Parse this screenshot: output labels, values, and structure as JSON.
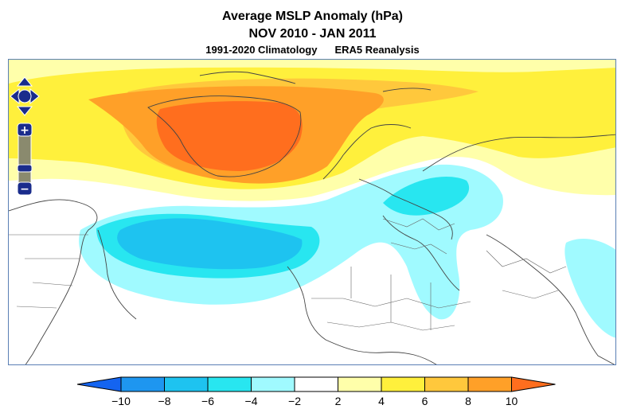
{
  "title": {
    "line1": "Average MSLP Anomaly (hPa)",
    "line2": "NOV 2010 - JAN 2011",
    "climatology": "1991-2020 Climatology",
    "source": "ERA5 Reanalysis"
  },
  "map": {
    "region": "North Atlantic and Europe",
    "controls": {
      "pan_up": "pan-up",
      "pan_down": "pan-down",
      "pan_left": "pan-left",
      "pan_right": "pan-right",
      "zoom_in": "+",
      "zoom_out": "−"
    }
  },
  "colorbar": {
    "labels": [
      "−10",
      "−8",
      "−6",
      "−4",
      "−2",
      "2",
      "4",
      "6",
      "8",
      "10"
    ],
    "colors": [
      "#1464f0",
      "#1e96f0",
      "#1ec3f0",
      "#28e6f0",
      "#a0faff",
      "#ffffff",
      "#ffffaa",
      "#fff03c",
      "#ffc83c",
      "#ffa028",
      "#ff6e1e"
    ]
  }
}
